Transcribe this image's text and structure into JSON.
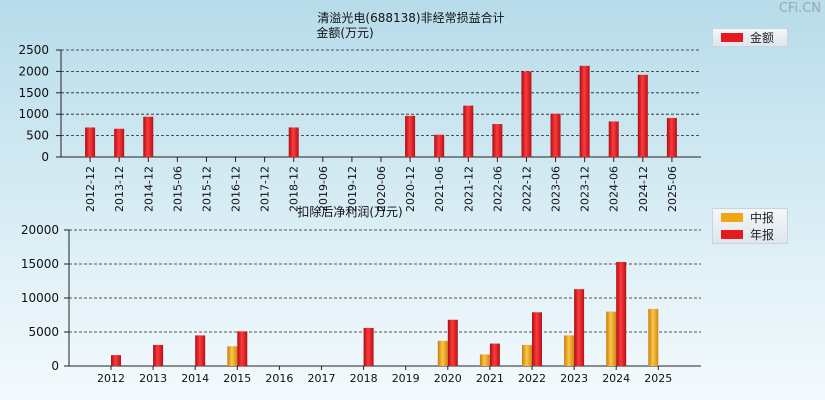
{
  "watermark": "CFi.CN",
  "chart_data": [
    {
      "type": "bar",
      "title": "清溢光电(688138)非经常损益合计",
      "ylabel": "金额(万元)",
      "ylim": [
        0,
        2500
      ],
      "yticks": [
        0,
        500,
        1000,
        1500,
        2000,
        2500
      ],
      "grid": true,
      "legend_position": "top-right",
      "categories": [
        "2012-12",
        "2013-12",
        "2014-12",
        "2015-06",
        "2015-12",
        "2016-12",
        "2017-12",
        "2018-12",
        "2019-06",
        "2019-12",
        "2020-06",
        "2020-12",
        "2021-06",
        "2021-12",
        "2022-06",
        "2022-12",
        "2023-06",
        "2023-12",
        "2024-06",
        "2024-12",
        "2025-06"
      ],
      "series": [
        {
          "name": "金额",
          "color": "#e8191c",
          "values": [
            690,
            660,
            940,
            null,
            null,
            null,
            null,
            690,
            null,
            null,
            null,
            960,
            520,
            1200,
            770,
            2000,
            1010,
            2130,
            830,
            1920,
            910
          ]
        }
      ]
    },
    {
      "type": "bar",
      "title": "扣除后净利润(万元)",
      "ylim": [
        0,
        20000
      ],
      "yticks": [
        0,
        5000,
        10000,
        15000,
        20000
      ],
      "grid": true,
      "legend_position": "top-right",
      "categories": [
        "2012",
        "2013",
        "2014",
        "2015",
        "2016",
        "2017",
        "2018",
        "2019",
        "2020",
        "2021",
        "2022",
        "2023",
        "2024",
        "2025"
      ],
      "series": [
        {
          "name": "中报",
          "color": "#f1a715",
          "values": [
            null,
            null,
            null,
            2900,
            null,
            null,
            null,
            null,
            3700,
            1700,
            3100,
            4500,
            8000,
            8400
          ]
        },
        {
          "name": "年报",
          "color": "#e8191c",
          "values": [
            1600,
            3100,
            4500,
            5100,
            null,
            null,
            5600,
            null,
            6800,
            3300,
            7900,
            11300,
            15300,
            null
          ]
        }
      ]
    }
  ]
}
